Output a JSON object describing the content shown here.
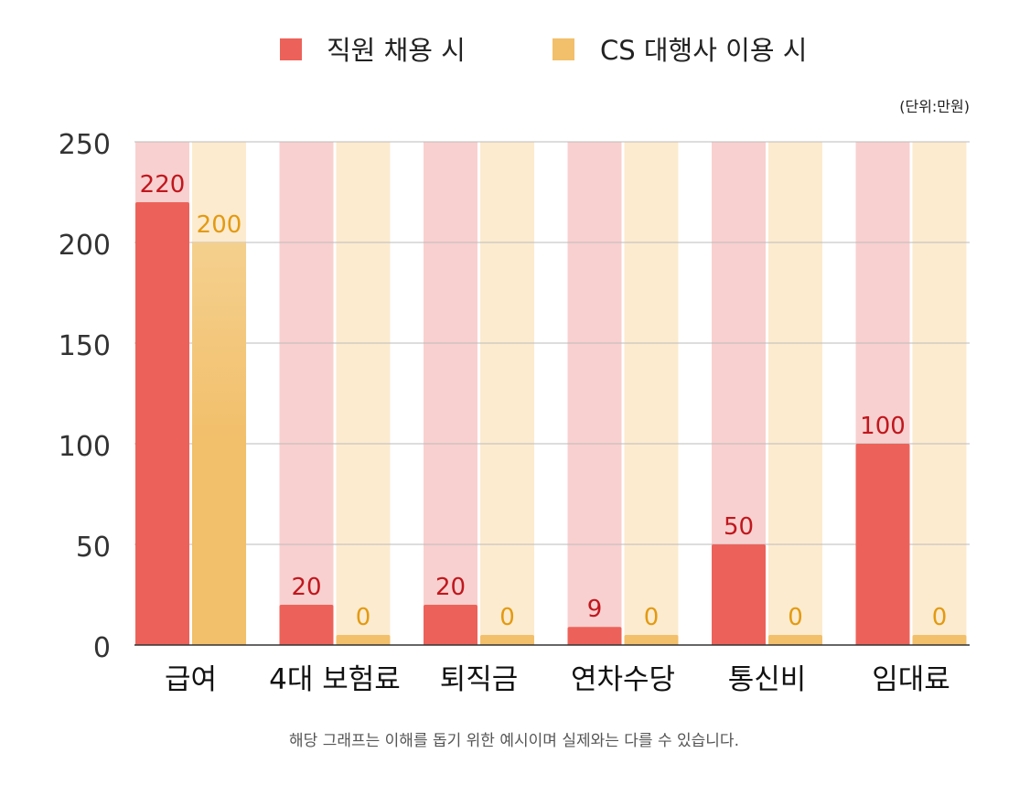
{
  "chart_data": {
    "type": "bar",
    "title": "",
    "unit_note": "(단위:만원)",
    "footnote": "해당 그래프는 이해를 돕기 위한 예시이며 실제와는 다를 수 있습니다.",
    "categories": [
      "급여",
      "4대 보험료",
      "퇴직금",
      "연차수당",
      "통신비",
      "임대료"
    ],
    "series": [
      {
        "name": "직원 채용 시",
        "color": "#EC625A",
        "track_color": "#F8D0CF",
        "label_color": "#C0171E",
        "values": [
          220,
          20,
          20,
          9,
          50,
          100
        ],
        "labels": [
          "220",
          "20",
          "20",
          "9",
          "50",
          "100"
        ]
      },
      {
        "name": "CS 대행사 이용 시",
        "color": "#F2BF6A",
        "track_color": "#FCEBCF",
        "label_color": "#E39A12",
        "values": [
          200,
          0,
          0,
          0,
          0,
          0
        ],
        "labels": [
          "200",
          "0",
          "0",
          "0",
          "0",
          "0"
        ]
      }
    ],
    "ylim": [
      0,
      250
    ],
    "yticks": [
      "0",
      "50",
      "100",
      "150",
      "200",
      "250"
    ],
    "grid": true,
    "legend_position": "top-center"
  }
}
